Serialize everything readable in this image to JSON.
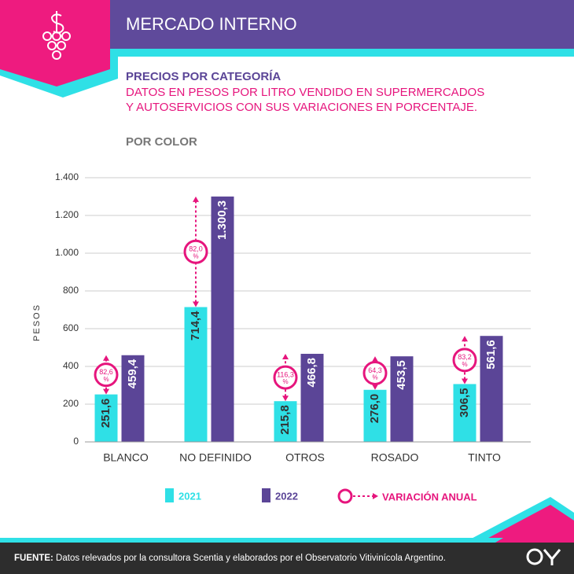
{
  "header": {
    "title": "MERCADO INTERNO"
  },
  "chart_data": {
    "type": "bar",
    "title": "PRECIOS POR CATEGORÍA",
    "subtitle": [
      "DATOS EN PESOS POR LITRO VENDIDO EN SUPERMERCADOS",
      "Y AUTOSERVICIOS CON SUS VARIACIONES EN PORCENTAJE."
    ],
    "section": "POR COLOR",
    "y_label": "PESOS",
    "categories": [
      "BLANCO",
      "NO DEFINIDO",
      "OTROS",
      "ROSADO",
      "TINTO"
    ],
    "series": [
      {
        "name": "2021",
        "color": "#2fe0e6",
        "values": [
          251.6,
          714.4,
          215.8,
          276.0,
          306.5
        ],
        "value_labels": [
          "251,6",
          "714,4",
          "215,8",
          "276,0",
          "306,5"
        ]
      },
      {
        "name": "2022",
        "color": "#5b4597",
        "values": [
          459.4,
          1300.3,
          466.8,
          453.5,
          561.6
        ],
        "value_labels": [
          "459,4",
          "1.300,3",
          "466,8",
          "453,5",
          "561,6"
        ]
      }
    ],
    "variation": {
      "name": "VARIACIÓN ANUAL",
      "color": "#e6157d",
      "unit": "%",
      "values": [
        82.6,
        82.0,
        116.3,
        64.3,
        83.2
      ],
      "value_labels": [
        "82,6",
        "82,0",
        "116,3",
        "64,3",
        "83,2"
      ]
    },
    "ylim": [
      0,
      1400
    ],
    "yticks": [
      0,
      200,
      400,
      600,
      800,
      {
        "value": 1000,
        "label": "1.000"
      },
      {
        "value": 1200,
        "label": "1.200"
      },
      {
        "value": 1400,
        "label": "1.400"
      }
    ],
    "grid": true
  },
  "footer": {
    "label": "FUENTE:",
    "text": "Datos relevados por la consultora Scentia y elaborados por el Observatorio Vitivinícola Argentino."
  }
}
